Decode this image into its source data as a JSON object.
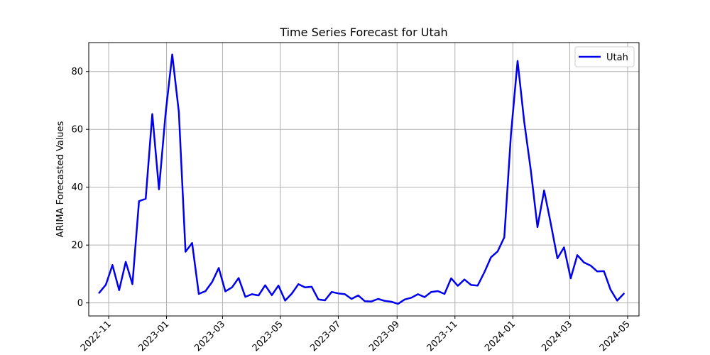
{
  "chart_data": {
    "type": "line",
    "title": "Time Series Forecast for Utah",
    "xlabel": "",
    "ylabel": "ARIMA Forecasted Values",
    "ylim": [
      -4.5,
      90.0
    ],
    "xlim": [
      "2022-10-11",
      "2024-05-13"
    ],
    "yticks": [
      0,
      20,
      40,
      60,
      80
    ],
    "xticks": [
      "2022-11",
      "2023-01",
      "2023-03",
      "2023-05",
      "2023-07",
      "2023-09",
      "2023-11",
      "2024-01",
      "2024-03",
      "2024-05"
    ],
    "xtick_dates": [
      "2022-11-01",
      "2023-01-01",
      "2023-03-01",
      "2023-05-01",
      "2023-07-01",
      "2023-09-01",
      "2023-11-01",
      "2024-01-01",
      "2024-03-01",
      "2024-05-01"
    ],
    "grid": true,
    "legend_position": "top-right",
    "series": [
      {
        "name": "Utah",
        "color": "#0000ee",
        "x": [
          "2022-10-22",
          "2022-10-29",
          "2022-11-05",
          "2022-11-12",
          "2022-11-19",
          "2022-11-26",
          "2022-12-03",
          "2022-12-10",
          "2022-12-17",
          "2022-12-24",
          "2022-12-31",
          "2023-01-07",
          "2023-01-14",
          "2023-01-21",
          "2023-01-28",
          "2023-02-04",
          "2023-02-11",
          "2023-02-18",
          "2023-02-25",
          "2023-03-04",
          "2023-03-11",
          "2023-03-18",
          "2023-03-25",
          "2023-04-01",
          "2023-04-08",
          "2023-04-15",
          "2023-04-22",
          "2023-04-29",
          "2023-05-06",
          "2023-05-13",
          "2023-05-20",
          "2023-05-27",
          "2023-06-03",
          "2023-06-10",
          "2023-06-17",
          "2023-06-24",
          "2023-07-01",
          "2023-07-08",
          "2023-07-15",
          "2023-07-22",
          "2023-07-29",
          "2023-08-05",
          "2023-08-12",
          "2023-08-19",
          "2023-08-26",
          "2023-09-02",
          "2023-09-09",
          "2023-09-16",
          "2023-09-23",
          "2023-09-30",
          "2023-10-07",
          "2023-10-14",
          "2023-10-21",
          "2023-10-28",
          "2023-11-04",
          "2023-11-11",
          "2023-11-18",
          "2023-11-25",
          "2023-12-02",
          "2023-12-09",
          "2023-12-16",
          "2023-12-23",
          "2023-12-30",
          "2024-01-06",
          "2024-01-13",
          "2024-01-20",
          "2024-01-27",
          "2024-02-03",
          "2024-02-10",
          "2024-02-17",
          "2024-02-24",
          "2024-03-02",
          "2024-03-09",
          "2024-03-16",
          "2024-03-23",
          "2024-03-30",
          "2024-04-06",
          "2024-04-13",
          "2024-04-20",
          "2024-04-27"
        ],
        "y": [
          3.5,
          6.3,
          13.1,
          4.4,
          14.2,
          6.5,
          35.2,
          36.0,
          65.3,
          39.3,
          65.4,
          85.9,
          66.0,
          17.7,
          20.7,
          3.1,
          4.1,
          7.2,
          12.1,
          4.0,
          5.4,
          8.6,
          2.1,
          3.0,
          2.6,
          6.1,
          2.7,
          6.0,
          0.8,
          3.2,
          6.5,
          5.4,
          5.6,
          1.2,
          0.9,
          3.8,
          3.3,
          3.0,
          1.4,
          2.6,
          0.6,
          0.5,
          1.4,
          0.7,
          0.4,
          -0.3,
          1.2,
          1.8,
          3.0,
          2.0,
          3.8,
          4.1,
          3.1,
          8.5,
          5.9,
          8.1,
          6.2,
          6.0,
          10.6,
          15.8,
          17.8,
          22.7,
          58.1,
          83.7,
          62.7,
          45.7,
          26.2,
          38.9,
          27.5,
          15.4,
          19.2,
          8.5,
          16.5,
          14.0,
          12.9,
          10.9,
          11.0,
          4.6,
          0.8,
          3.2
        ]
      }
    ]
  }
}
